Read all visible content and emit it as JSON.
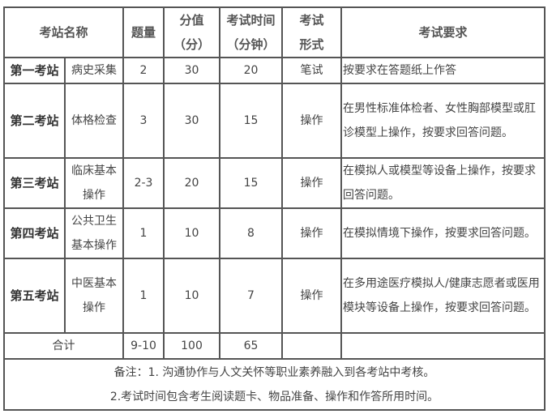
{
  "header": {
    "station_name": "考站名称",
    "question_count": "题量",
    "score": "分值（分）",
    "time": "考试时间（分钟）",
    "format": "考试形式",
    "requirement": "考试要求"
  },
  "rows": [
    {
      "station": "第一考站",
      "content": "病史采集",
      "count": "2",
      "score": "30",
      "time": "20",
      "format": "笔试",
      "requirement": "按要求在答题纸上作答"
    },
    {
      "station": "第二考站",
      "content": "体格检查",
      "count": "3",
      "score": "30",
      "time": "15",
      "format": "操作",
      "requirement": "在男性标准体检者、女性胸部模型或肛诊模型上操作，按要求回答问题。"
    },
    {
      "station": "第三考站",
      "content": "临床基本操作",
      "count": "2-3",
      "score": "20",
      "time": "15",
      "format": "操作",
      "requirement": "在模拟人或模型等设备上操作，按要求回答问题。"
    },
    {
      "station": "第四考站",
      "content": "公共卫生基本操作",
      "count": "1",
      "score": "10",
      "time": "8",
      "format": "操作",
      "requirement": "在模拟情境下操作，按要求回答问题。"
    },
    {
      "station": "第五考站",
      "content": "中医基本操作",
      "count": "1",
      "score": "10",
      "time": "7",
      "format": "操作",
      "requirement": "在多用途医疗模拟人/健康志愿者或医用模块等设备上操作，按要求回答问题。"
    }
  ],
  "total": {
    "label": "合计",
    "count": "9-10",
    "score": "100",
    "time": "65"
  },
  "notes": {
    "line1": "备注：1. 沟通协作与人文关怀等职业素养融入到各考站中考核。",
    "line2": "2.考试时间包含考生阅读题卡、物品准备、操作和作答所用时间。"
  }
}
